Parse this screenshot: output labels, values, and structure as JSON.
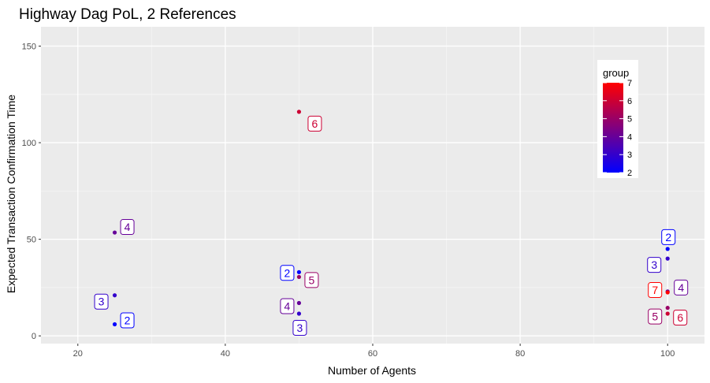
{
  "chart_data": {
    "type": "scatter",
    "title": "Highway Dag PoL, 2 References",
    "xlabel": "Number of Agents",
    "ylabel": "Expected Transaction Confirmation Time",
    "xlim": [
      15,
      105
    ],
    "ylim": [
      -4,
      160
    ],
    "x_ticks": [
      20,
      40,
      60,
      80,
      100
    ],
    "y_ticks": [
      0,
      50,
      100,
      150
    ],
    "grid": true,
    "legend": {
      "title": "group",
      "position": "top-right",
      "labels": [
        2,
        3,
        4,
        5,
        6,
        7
      ],
      "low_color": "#0000ff",
      "high_color": "#ff0000"
    },
    "points": [
      {
        "x": 25,
        "y": 6,
        "group": 2
      },
      {
        "x": 25,
        "y": 21,
        "group": 3
      },
      {
        "x": 25,
        "y": 53.5,
        "group": 4
      },
      {
        "x": 50,
        "y": 33,
        "group": 2
      },
      {
        "x": 50,
        "y": 11.5,
        "group": 3
      },
      {
        "x": 50,
        "y": 17,
        "group": 4
      },
      {
        "x": 50,
        "y": 30.5,
        "group": 5
      },
      {
        "x": 50,
        "y": 116,
        "group": 6
      },
      {
        "x": 100,
        "y": 45,
        "group": 2
      },
      {
        "x": 100,
        "y": 40,
        "group": 3
      },
      {
        "x": 100,
        "y": 23,
        "group": 4
      },
      {
        "x": 100,
        "y": 14.5,
        "group": 5
      },
      {
        "x": 100,
        "y": 11.5,
        "group": 6
      },
      {
        "x": 100,
        "y": 22.5,
        "group": 7
      }
    ]
  }
}
